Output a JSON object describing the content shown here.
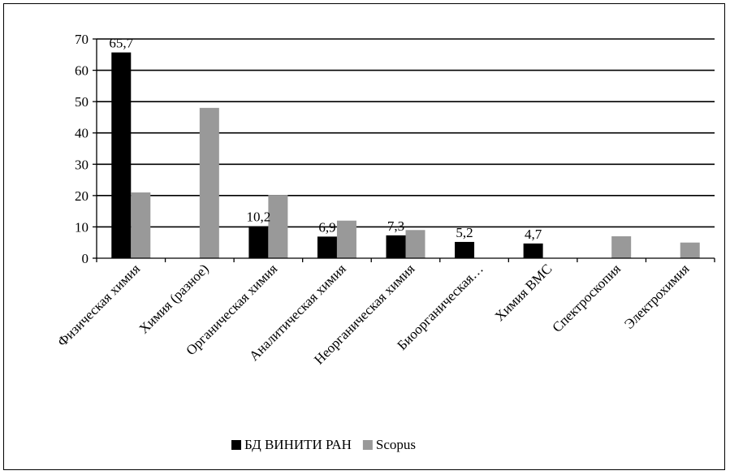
{
  "chart_data": {
    "type": "bar",
    "categories": [
      "Физическая химия",
      "Химия (разное)",
      "Органическая химия",
      "Аналитическая химия",
      "Неорганическая химия",
      "Биоорганическая…",
      "Химия ВМС",
      "Спектроскопия",
      "Электрохимия"
    ],
    "series": [
      {
        "name": "БД ВИНИТИ РАН",
        "color": "#000000",
        "values": [
          65.7,
          null,
          10.2,
          6.9,
          7.3,
          5.2,
          4.7,
          null,
          null
        ],
        "labels": [
          "65,7",
          "",
          "10,2",
          "6,9",
          "7,3",
          "5,2",
          "4,7",
          "",
          ""
        ]
      },
      {
        "name": "Scopus",
        "color": "#999999",
        "values": [
          21,
          48,
          20.2,
          12,
          9,
          null,
          null,
          7,
          5
        ],
        "labels": [
          "",
          "",
          "",
          "",
          "",
          "",
          "",
          "",
          ""
        ]
      }
    ],
    "ylim": [
      0,
      70
    ],
    "yticks": [
      0,
      10,
      20,
      30,
      40,
      50,
      60,
      70
    ],
    "grid": true,
    "legend_position": "bottom"
  }
}
